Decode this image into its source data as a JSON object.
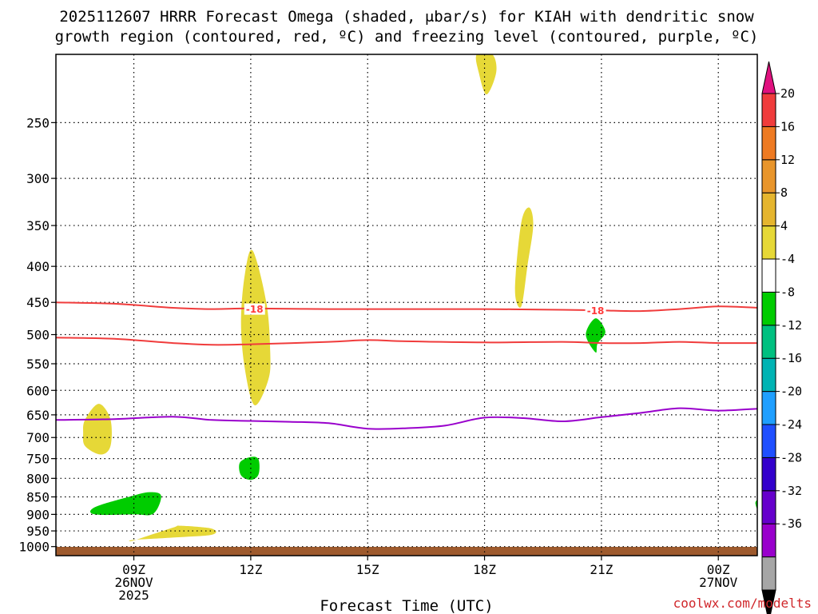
{
  "chart_data": {
    "type": "time-height contour",
    "title_line1": "2025112607 HRRR Forecast Omega (shaded, μbar/s) for KIAH with dendritic snow",
    "title_line2": "growth region (contoured, red, ºC) and freezing level (contoured, purple, ºC)",
    "xlabel": "Forecast Time (UTC)",
    "credit": "coolwx.com/modelts",
    "x_ticks": [
      {
        "hour": 9,
        "label": "09Z",
        "sub1": "26NOV",
        "sub2": "2025"
      },
      {
        "hour": 12,
        "label": "12Z",
        "sub1": "",
        "sub2": ""
      },
      {
        "hour": 15,
        "label": "15Z",
        "sub1": "",
        "sub2": ""
      },
      {
        "hour": 18,
        "label": "18Z",
        "sub1": "",
        "sub2": ""
      },
      {
        "hour": 21,
        "label": "21Z",
        "sub1": "",
        "sub2": ""
      },
      {
        "hour": 24,
        "label": "00Z",
        "sub1": "27NOV",
        "sub2": ""
      }
    ],
    "x_range_hours": [
      7,
      25
    ],
    "y_ticks": [
      {
        "p": 250,
        "label": "250"
      },
      {
        "p": 300,
        "label": "300"
      },
      {
        "p": 350,
        "label": "350"
      },
      {
        "p": 400,
        "label": "400"
      },
      {
        "p": 450,
        "label": "450"
      },
      {
        "p": 500,
        "label": "500"
      },
      {
        "p": 550,
        "label": "550"
      },
      {
        "p": 600,
        "label": "600"
      },
      {
        "p": 650,
        "label": "650"
      },
      {
        "p": 700,
        "label": "700"
      },
      {
        "p": 750,
        "label": "750"
      },
      {
        "p": 800,
        "label": "800"
      },
      {
        "p": 850,
        "label": "850"
      },
      {
        "p": 900,
        "label": "900"
      },
      {
        "p": 950,
        "label": "950"
      },
      {
        "p": 1000,
        "label": "1000"
      }
    ],
    "y_range_hpa": [
      200,
      1030
    ],
    "colorbar": {
      "colors": [
        "#a6a6a6",
        "#9900cc",
        "#6600cc",
        "#3300cc",
        "#1f4fff",
        "#1f9fff",
        "#00b3b3",
        "#00c080",
        "#00cc00",
        "#ffffff",
        "#e6d837",
        "#e5b52e",
        "#e8952b",
        "#ee7a22",
        "#f03c3c"
      ],
      "labels": [
        "-36",
        "-32",
        "-28",
        "-24",
        "-20",
        "-16",
        "-12",
        "-8",
        "-4",
        "4",
        "8",
        "12",
        "16",
        "20"
      ],
      "over_color": "#e0117f",
      "under_color": "#000000"
    },
    "dgz_contours": [
      {
        "level": -18,
        "label": "-18",
        "points": [
          [
            7,
            450
          ],
          [
            8.5,
            452
          ],
          [
            10,
            458
          ],
          [
            11,
            460
          ],
          [
            12,
            459
          ],
          [
            14,
            460
          ],
          [
            16,
            460
          ],
          [
            18,
            460
          ],
          [
            20,
            461
          ],
          [
            21,
            462
          ],
          [
            22,
            463
          ],
          [
            23,
            460
          ],
          [
            24,
            456
          ],
          [
            25,
            458
          ]
        ]
      },
      {
        "level": -12,
        "label": "",
        "points": [
          [
            7,
            505
          ],
          [
            8.5,
            507
          ],
          [
            10,
            514
          ],
          [
            11,
            517
          ],
          [
            12,
            516
          ],
          [
            14,
            512
          ],
          [
            15,
            509
          ],
          [
            16,
            511
          ],
          [
            18,
            513
          ],
          [
            20,
            512
          ],
          [
            21,
            514
          ],
          [
            22,
            514
          ],
          [
            23,
            512
          ],
          [
            24,
            514
          ],
          [
            25,
            514
          ]
        ]
      }
    ],
    "dgz_label_positions": [
      [
        12.1,
        460
      ],
      [
        20.85,
        462
      ]
    ],
    "freezing_level": {
      "level": 0,
      "points": [
        [
          7,
          661
        ],
        [
          8.5,
          659
        ],
        [
          10,
          654
        ],
        [
          11,
          661
        ],
        [
          12,
          663
        ],
        [
          13,
          665
        ],
        [
          14,
          668
        ],
        [
          15,
          680
        ],
        [
          16,
          679
        ],
        [
          17,
          673
        ],
        [
          18,
          656
        ],
        [
          19,
          657
        ],
        [
          20,
          664
        ],
        [
          21,
          655
        ],
        [
          22,
          646
        ],
        [
          23,
          636
        ],
        [
          24,
          641
        ],
        [
          25,
          637
        ]
      ]
    },
    "omega_regions": [
      {
        "name": "ascent-region-1",
        "omega": -6,
        "points": [
          [
            8.0,
            879
          ],
          [
            8.9,
            849
          ],
          [
            9.4,
            837
          ],
          [
            9.7,
            847
          ],
          [
            9.5,
            898
          ],
          [
            9.0,
            900
          ],
          [
            8.0,
            900
          ]
        ]
      },
      {
        "name": "ascent-region-2",
        "omega": -6,
        "points": [
          [
            11.72,
            760
          ],
          [
            12.0,
            746
          ],
          [
            12.2,
            752
          ],
          [
            12.2,
            790
          ],
          [
            12.0,
            804
          ],
          [
            11.75,
            792
          ]
        ]
      },
      {
        "name": "ascent-region-3",
        "omega": -6,
        "points": [
          [
            20.6,
            500
          ],
          [
            20.85,
            474
          ],
          [
            21.1,
            495
          ],
          [
            20.9,
            515
          ],
          [
            20.85,
            530
          ]
        ]
      },
      {
        "name": "ascent-region-4",
        "omega": -6,
        "points": [
          [
            24.95,
            867
          ],
          [
            25,
            860
          ],
          [
            25,
            885
          ]
        ]
      },
      {
        "name": "descent-region-1",
        "omega": 5,
        "points": [
          [
            7.75,
            660
          ],
          [
            8.1,
            627
          ],
          [
            8.4,
            660
          ],
          [
            8.4,
            720
          ],
          [
            8.15,
            740
          ],
          [
            7.75,
            720
          ],
          [
            7.7,
            690
          ]
        ]
      },
      {
        "name": "descent-region-2",
        "omega": 5,
        "points": [
          [
            11.75,
            480
          ],
          [
            11.85,
            410
          ],
          [
            12.05,
            380
          ],
          [
            12.4,
            450
          ],
          [
            12.5,
            530
          ],
          [
            12.45,
            580
          ],
          [
            12.1,
            630
          ],
          [
            11.85,
            560
          ]
        ]
      },
      {
        "name": "descent-region-3",
        "omega": 5,
        "points": [
          [
            9.0,
            980
          ],
          [
            10.0,
            940
          ],
          [
            10.2,
            934
          ],
          [
            11.0,
            943
          ],
          [
            11.0,
            962
          ],
          [
            10.0,
            971
          ],
          [
            9.0,
            978
          ]
        ]
      },
      {
        "name": "descent-region-4",
        "omega": 5,
        "points": [
          [
            17.8,
            200
          ],
          [
            18.2,
            200
          ],
          [
            18.3,
            212
          ],
          [
            18.05,
            228
          ],
          [
            17.85,
            212
          ]
        ]
      },
      {
        "name": "descent-region-5",
        "omega": 5,
        "points": [
          [
            18.8,
            410
          ],
          [
            18.95,
            345
          ],
          [
            19.15,
            330
          ],
          [
            19.25,
            350
          ],
          [
            19.1,
            400
          ],
          [
            18.95,
            455
          ],
          [
            18.8,
            445
          ]
        ]
      }
    ],
    "terrain_color": "#9e5a2d"
  }
}
